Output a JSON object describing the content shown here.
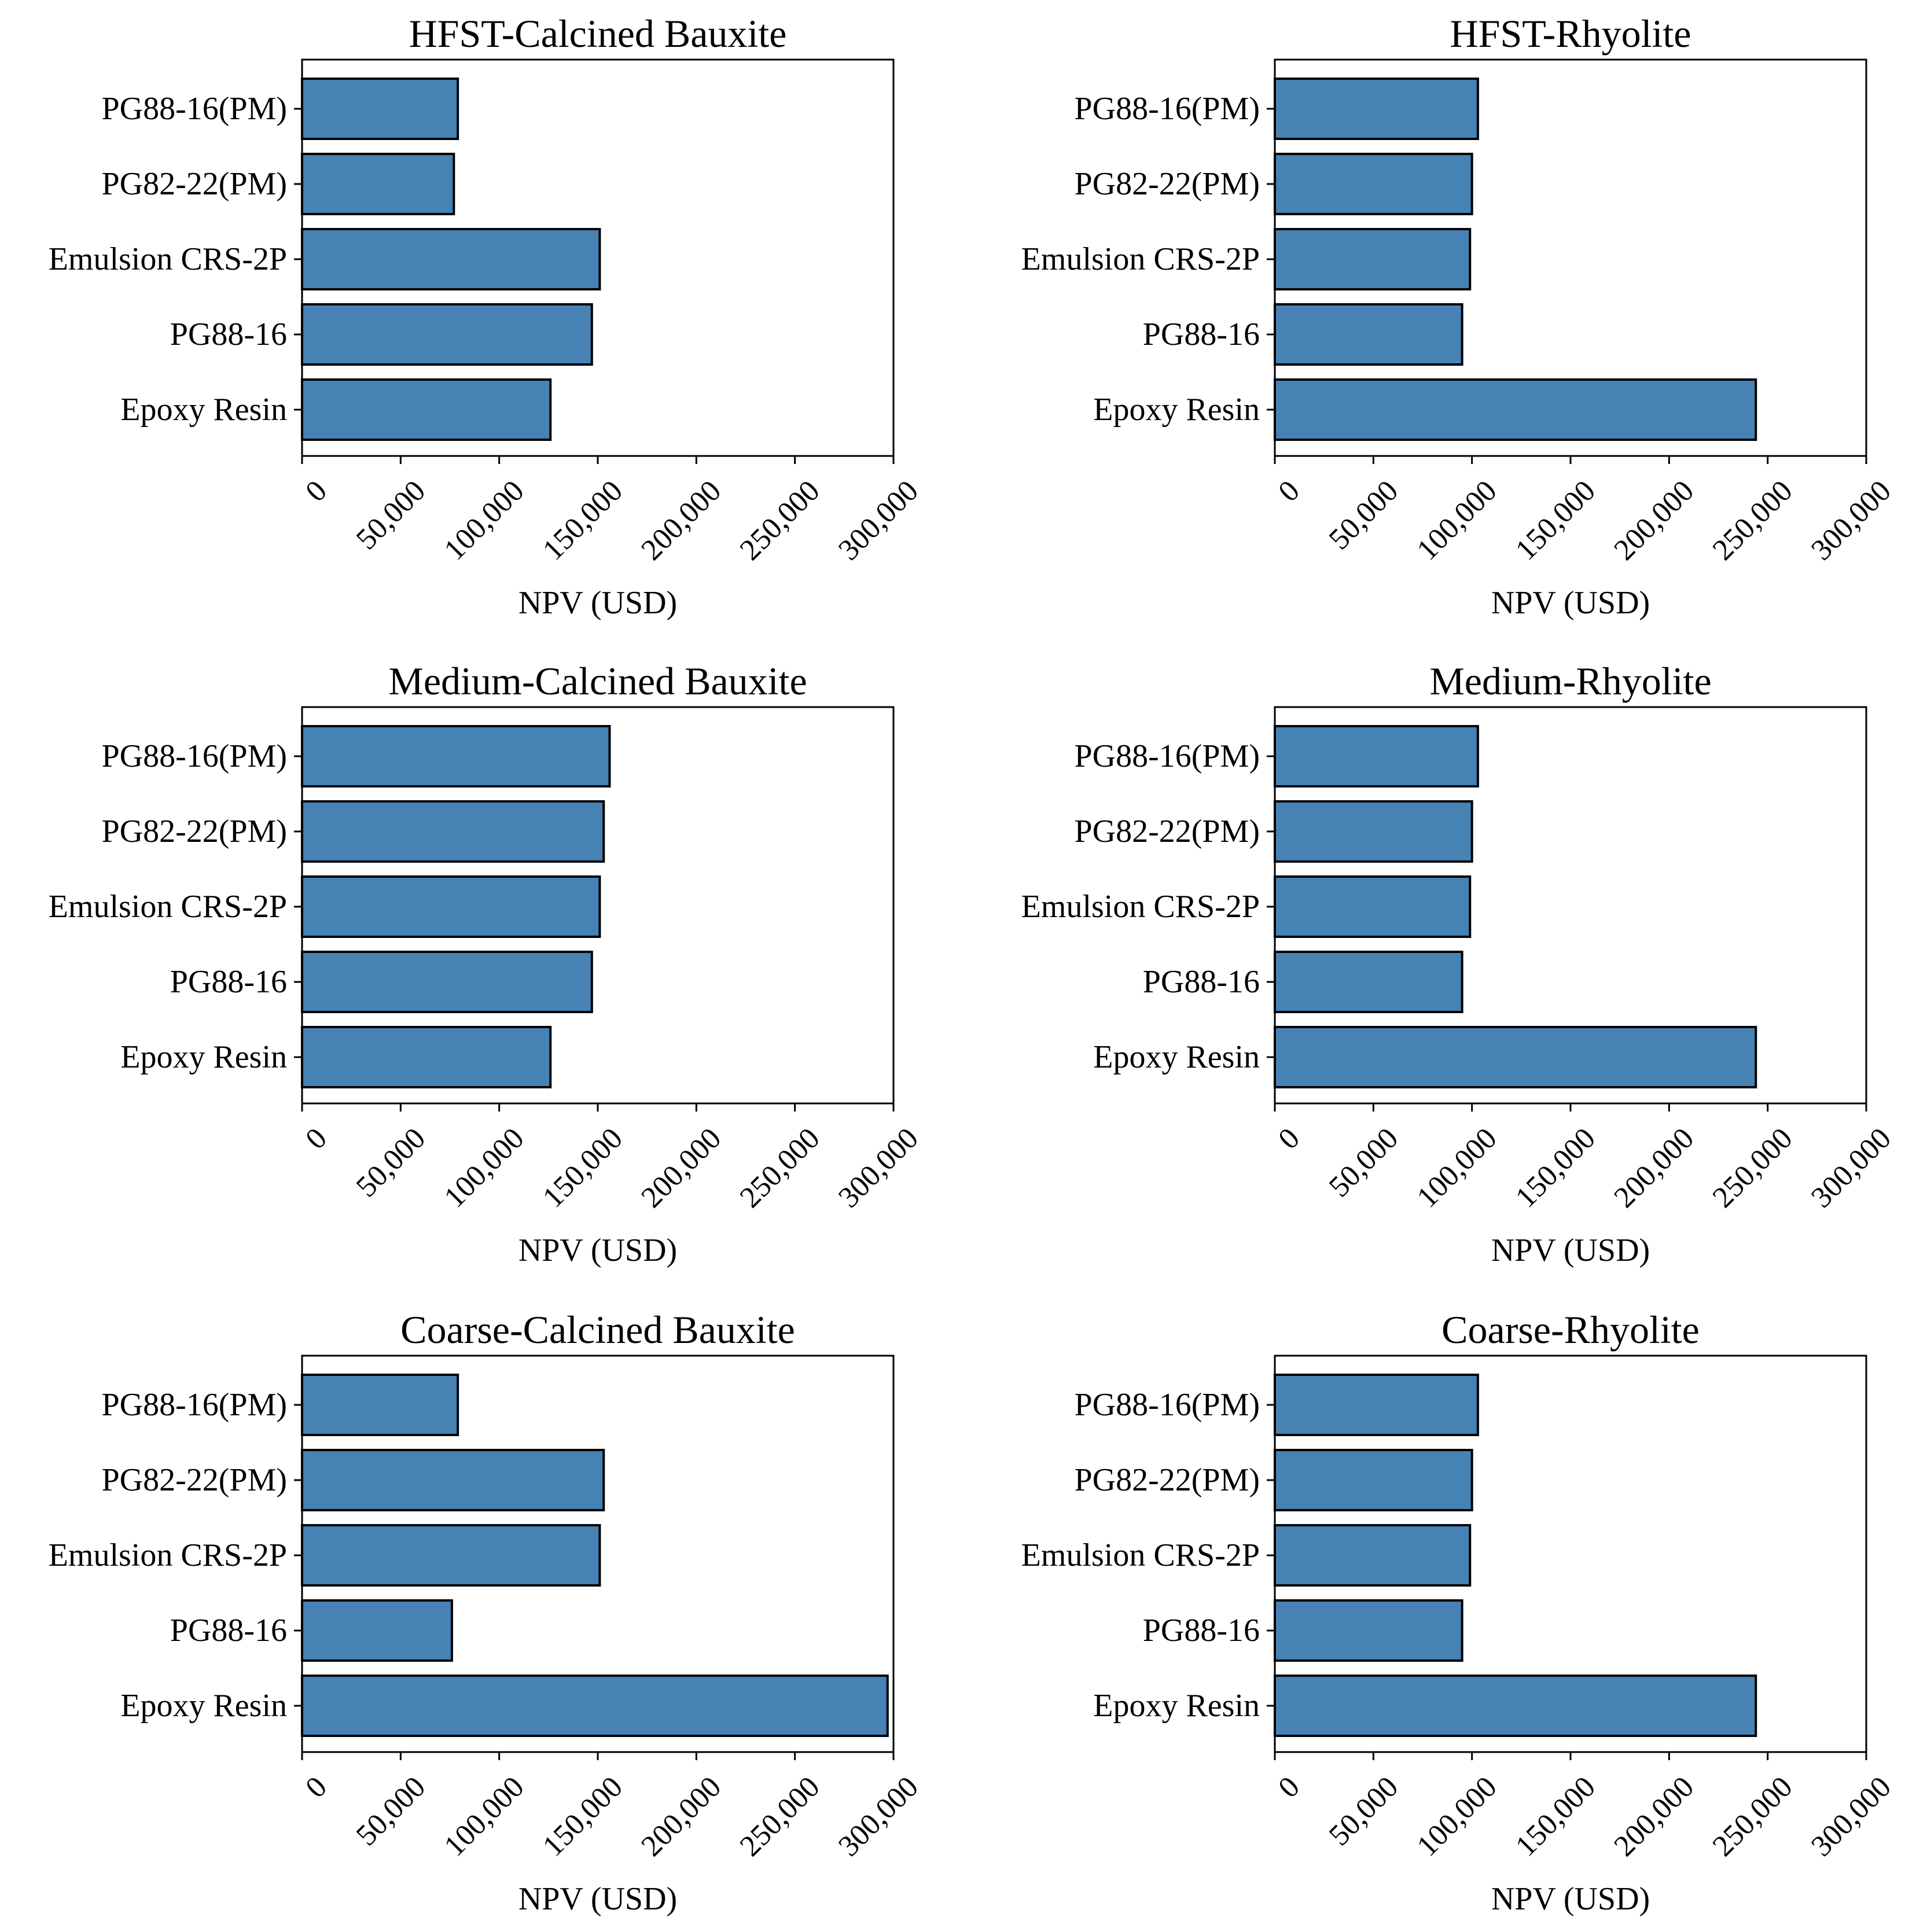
{
  "figure": {
    "bar_color": "#4682b4",
    "edge_color": "#000000"
  },
  "chart_data": [
    {
      "type": "bar",
      "orientation": "horizontal",
      "title": "HFST-Calcined Bauxite",
      "xlabel": "NPV (USD)",
      "ylabel": "",
      "categories": [
        "PG88-16(PM)",
        "PG82-22(PM)",
        "Emulsion CRS-2P",
        "PG88-16",
        "Epoxy Resin"
      ],
      "values": [
        79000,
        77000,
        151000,
        147000,
        126000
      ],
      "xlim": [
        0,
        300000
      ],
      "xticks": [
        0,
        50000,
        100000,
        150000,
        200000,
        250000,
        300000
      ],
      "xtick_labels": [
        "0",
        "50,000",
        "100,000",
        "150,000",
        "200,000",
        "250,000",
        "300,000"
      ],
      "grid": false
    },
    {
      "type": "bar",
      "orientation": "horizontal",
      "title": "HFST-Rhyolite",
      "xlabel": "NPV (USD)",
      "ylabel": "",
      "categories": [
        "PG88-16(PM)",
        "PG82-22(PM)",
        "Emulsion CRS-2P",
        "PG88-16",
        "Epoxy Resin"
      ],
      "values": [
        103000,
        100000,
        99000,
        95000,
        244000
      ],
      "xlim": [
        0,
        300000
      ],
      "xticks": [
        0,
        50000,
        100000,
        150000,
        200000,
        250000,
        300000
      ],
      "xtick_labels": [
        "0",
        "50,000",
        "100,000",
        "150,000",
        "200,000",
        "250,000",
        "300,000"
      ],
      "grid": false
    },
    {
      "type": "bar",
      "orientation": "horizontal",
      "title": "Medium-Calcined Bauxite",
      "xlabel": "NPV (USD)",
      "ylabel": "",
      "categories": [
        "PG88-16(PM)",
        "PG82-22(PM)",
        "Emulsion CRS-2P",
        "PG88-16",
        "Epoxy Resin"
      ],
      "values": [
        156000,
        153000,
        151000,
        147000,
        126000
      ],
      "xlim": [
        0,
        300000
      ],
      "xticks": [
        0,
        50000,
        100000,
        150000,
        200000,
        250000,
        300000
      ],
      "xtick_labels": [
        "0",
        "50,000",
        "100,000",
        "150,000",
        "200,000",
        "250,000",
        "300,000"
      ],
      "grid": false
    },
    {
      "type": "bar",
      "orientation": "horizontal",
      "title": "Medium-Rhyolite",
      "xlabel": "NPV (USD)",
      "ylabel": "",
      "categories": [
        "PG88-16(PM)",
        "PG82-22(PM)",
        "Emulsion CRS-2P",
        "PG88-16",
        "Epoxy Resin"
      ],
      "values": [
        103000,
        100000,
        99000,
        95000,
        244000
      ],
      "xlim": [
        0,
        300000
      ],
      "xticks": [
        0,
        50000,
        100000,
        150000,
        200000,
        250000,
        300000
      ],
      "xtick_labels": [
        "0",
        "50,000",
        "100,000",
        "150,000",
        "200,000",
        "250,000",
        "300,000"
      ],
      "grid": false
    },
    {
      "type": "bar",
      "orientation": "horizontal",
      "title": "Coarse-Calcined Bauxite",
      "xlabel": "NPV (USD)",
      "ylabel": "",
      "categories": [
        "PG88-16(PM)",
        "PG82-22(PM)",
        "Emulsion CRS-2P",
        "PG88-16",
        "Epoxy Resin"
      ],
      "values": [
        79000,
        153000,
        151000,
        76000,
        297000
      ],
      "xlim": [
        0,
        300000
      ],
      "xticks": [
        0,
        50000,
        100000,
        150000,
        200000,
        250000,
        300000
      ],
      "xtick_labels": [
        "0",
        "50,000",
        "100,000",
        "150,000",
        "200,000",
        "250,000",
        "300,000"
      ],
      "grid": false
    },
    {
      "type": "bar",
      "orientation": "horizontal",
      "title": "Coarse-Rhyolite",
      "xlabel": "NPV (USD)",
      "ylabel": "",
      "categories": [
        "PG88-16(PM)",
        "PG82-22(PM)",
        "Emulsion CRS-2P",
        "PG88-16",
        "Epoxy Resin"
      ],
      "values": [
        103000,
        100000,
        99000,
        95000,
        244000
      ],
      "xlim": [
        0,
        300000
      ],
      "xticks": [
        0,
        50000,
        100000,
        150000,
        200000,
        250000,
        300000
      ],
      "xtick_labels": [
        "0",
        "50,000",
        "100,000",
        "150,000",
        "200,000",
        "250,000",
        "300,000"
      ],
      "grid": false
    }
  ]
}
